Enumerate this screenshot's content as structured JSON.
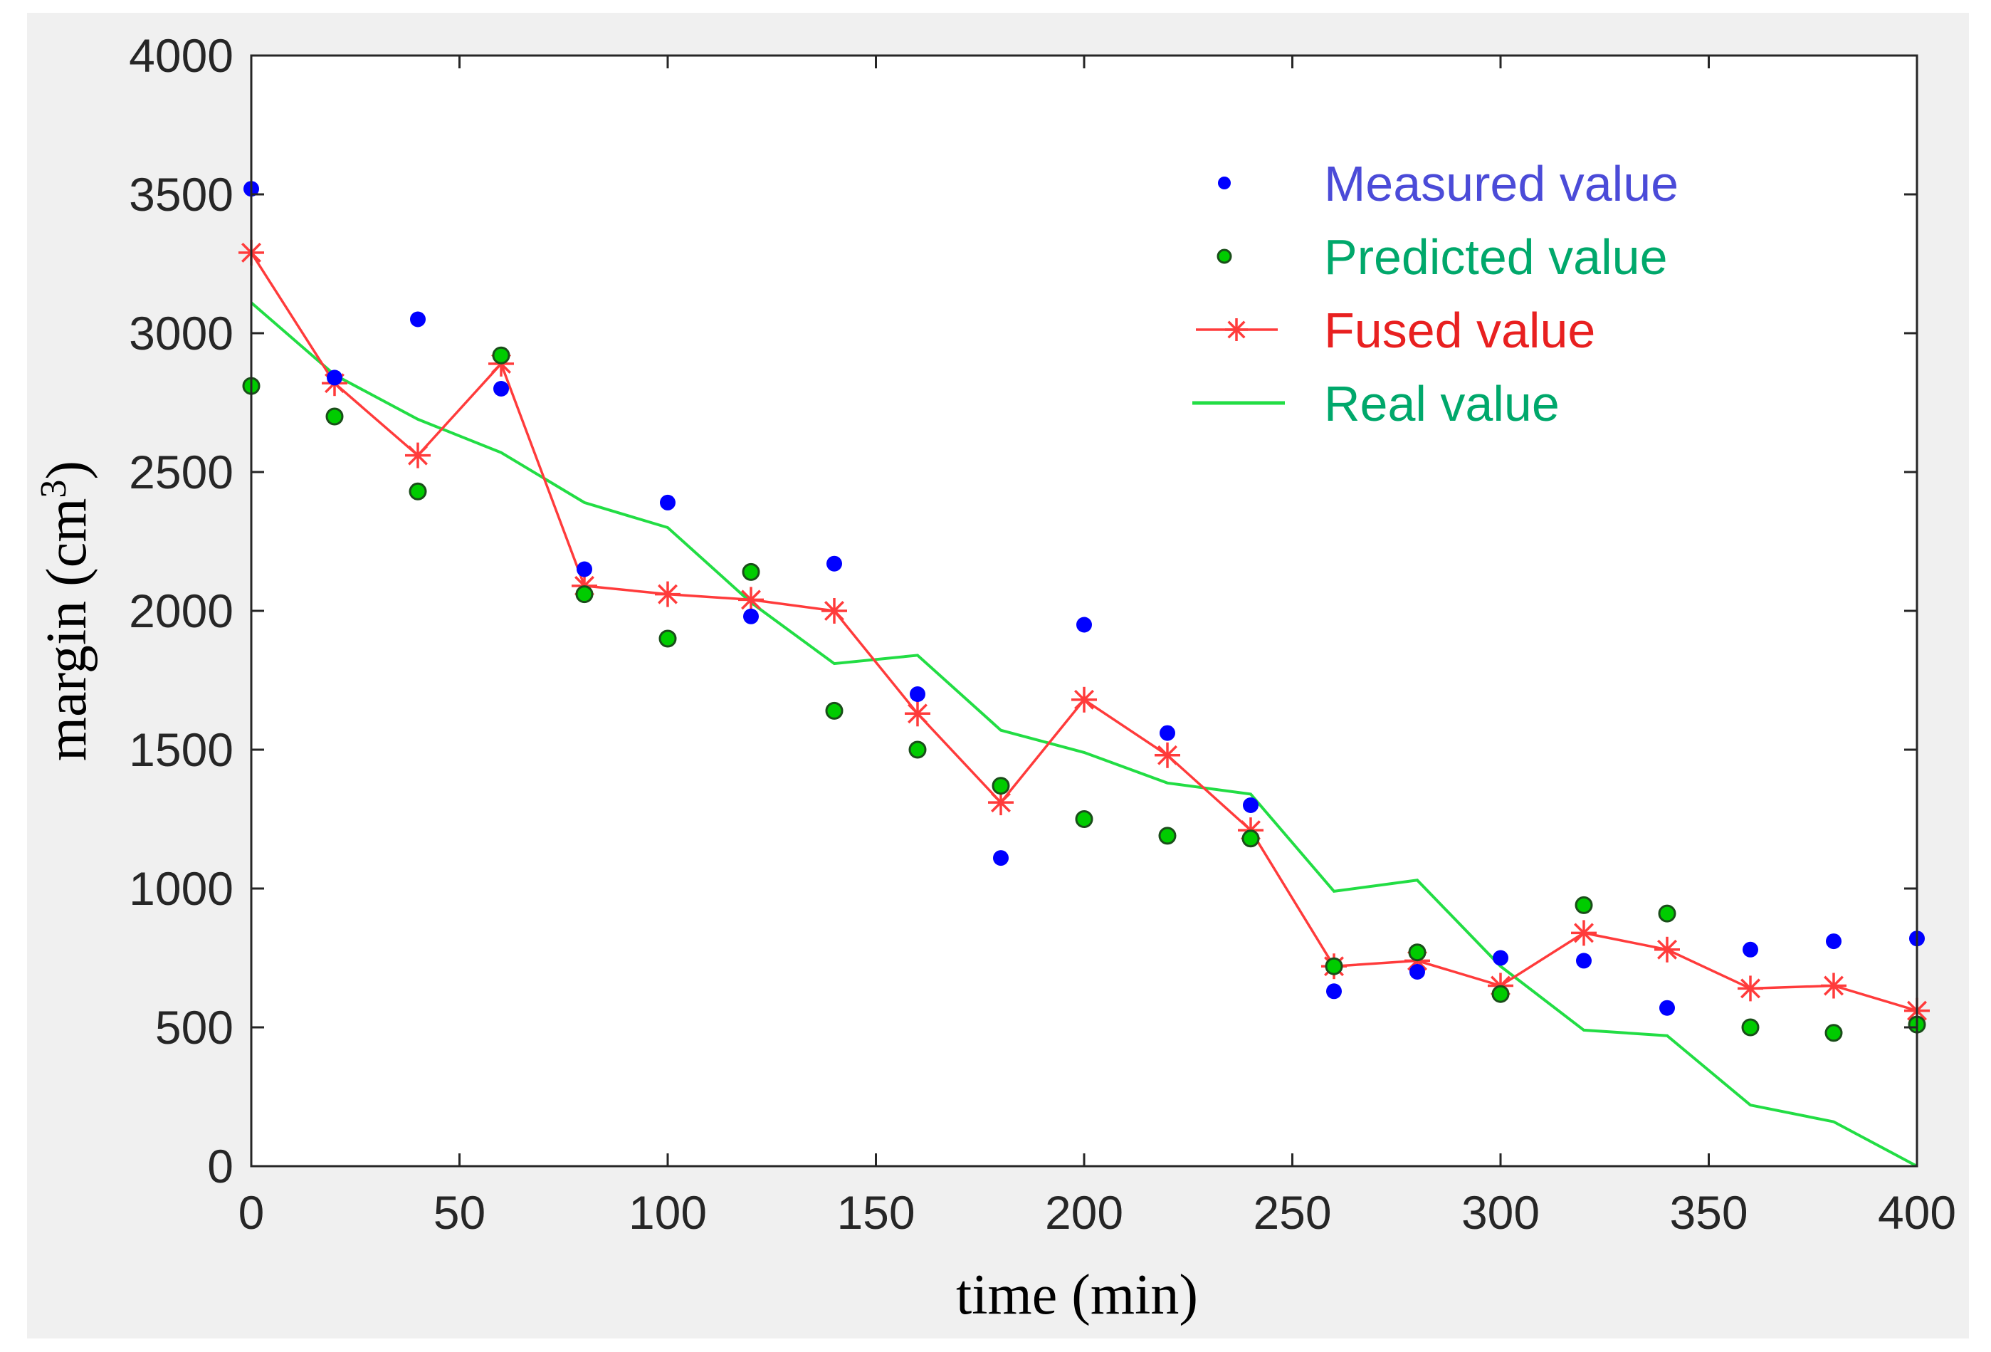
{
  "chart_data": {
    "type": "line",
    "title": "",
    "xlabel": "time (min)",
    "ylabel_main": "margin (cm",
    "ylabel_sup": "3",
    "ylabel_end": ")",
    "xlim": [
      0,
      400
    ],
    "ylim": [
      0,
      4000
    ],
    "xticks": [
      0,
      50,
      100,
      150,
      200,
      250,
      300,
      350,
      400
    ],
    "yticks": [
      0,
      500,
      1000,
      1500,
      2000,
      2500,
      3000,
      3500,
      4000
    ],
    "grid": false,
    "legend_position": "top-right",
    "x": [
      0,
      20,
      40,
      60,
      80,
      100,
      120,
      140,
      160,
      180,
      200,
      220,
      240,
      260,
      280,
      300,
      320,
      340,
      360,
      380,
      400
    ],
    "series": [
      {
        "name": "Measured value",
        "style": "dots",
        "color": "#0000ff",
        "text_color": "#4b4bd8",
        "values": [
          3520,
          2840,
          3050,
          2800,
          2150,
          2390,
          1980,
          2170,
          1700,
          1110,
          1950,
          1560,
          1300,
          630,
          700,
          750,
          740,
          570,
          780,
          810,
          820
        ]
      },
      {
        "name": "Predicted value",
        "style": "circles",
        "color": "#00cc00",
        "text_color": "#00a86b",
        "values": [
          2810,
          2700,
          2430,
          2920,
          2060,
          1900,
          2140,
          1640,
          1500,
          1370,
          1250,
          1190,
          1180,
          720,
          770,
          620,
          940,
          910,
          500,
          480,
          510
        ]
      },
      {
        "name": "Fused value",
        "style": "line-star",
        "color": "#ff3b3b",
        "text_color": "#e82020",
        "values": [
          3290,
          2820,
          2560,
          2890,
          2090,
          2060,
          2040,
          2000,
          1630,
          1310,
          1680,
          1480,
          1210,
          720,
          740,
          650,
          840,
          780,
          640,
          650,
          560
        ]
      },
      {
        "name": "Real value",
        "style": "line",
        "color": "#22dd44",
        "text_color": "#00a86b",
        "values": [
          3110,
          2850,
          2690,
          2570,
          2390,
          2300,
          2030,
          1810,
          1840,
          1570,
          1490,
          1380,
          1340,
          990,
          1030,
          720,
          490,
          470,
          220,
          160,
          0
        ]
      }
    ]
  }
}
